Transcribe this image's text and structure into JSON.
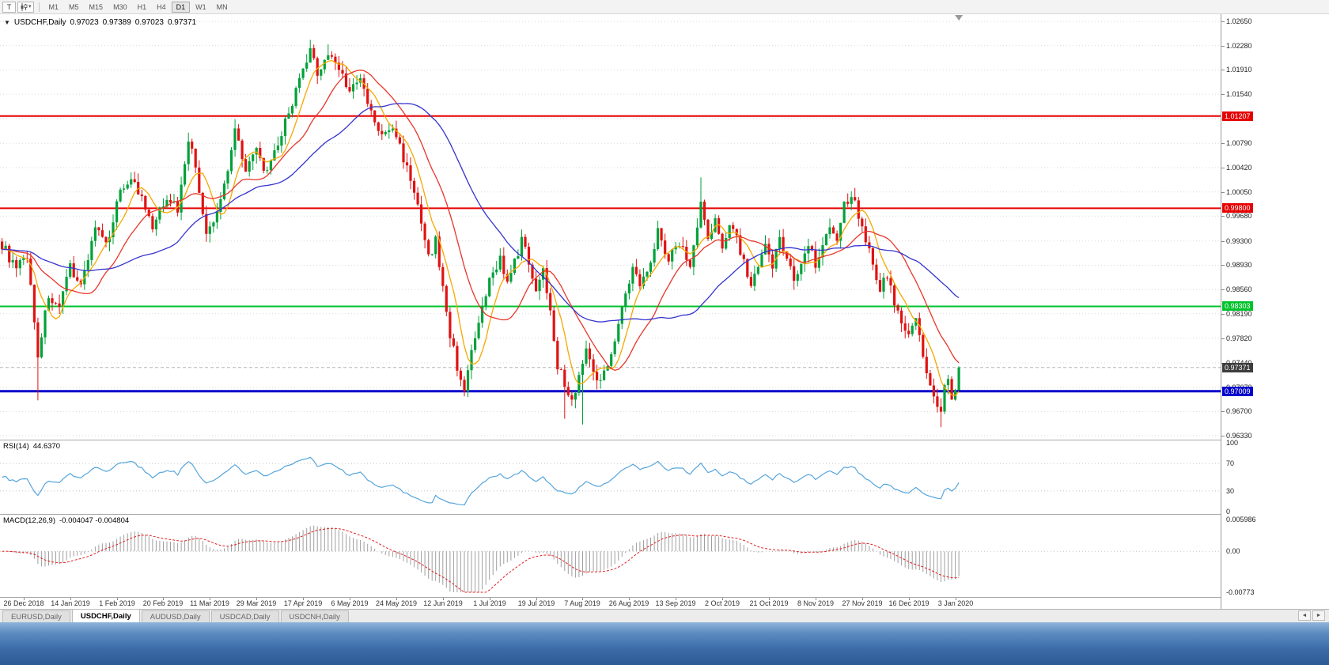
{
  "toolbar": {
    "tool_button_label": "T",
    "chart_type_dropdown_caret": "▾",
    "timeframes": [
      "M1",
      "M5",
      "M15",
      "M30",
      "H1",
      "H4",
      "D1",
      "W1",
      "MN"
    ],
    "active_timeframe": "D1"
  },
  "chart_header": {
    "collapse_icon": "▼",
    "symbol_period": "USDCHF,Daily",
    "open": "0.97023",
    "high": "0.97389",
    "low": "0.97023",
    "close": "0.97371"
  },
  "tabs": {
    "items": [
      "EURUSD,Daily",
      "USDCHF,Daily",
      "AUDUSD,Daily",
      "USDCAD,Daily",
      "USDCNH,Daily"
    ],
    "active": "USDCHF,Daily",
    "scroll_left": "◄",
    "scroll_right": "►"
  },
  "chart_data": {
    "type": "candlestick",
    "symbol": "USDCHF",
    "period": "Daily",
    "ohlc_display": {
      "open": "0.97023",
      "high": "0.97389",
      "low": "0.97023",
      "close": "0.97371"
    },
    "price_axis": {
      "view_max": 1.0276,
      "view_min": 0.9627,
      "ticks": [
        "1.02650",
        "1.02280",
        "1.01910",
        "1.01540",
        "1.01170",
        "1.00790",
        "1.00420",
        "1.00050",
        "0.99680",
        "0.99300",
        "0.98930",
        "0.98560",
        "0.98190",
        "0.97820",
        "0.97440",
        "0.97070",
        "0.96700",
        "0.96330"
      ]
    },
    "date_labels": [
      "26 Dec 2018",
      "14 Jan 2019",
      "1 Feb 2019",
      "20 Feb 2019",
      "11 Mar 2019",
      "29 Mar 2019",
      "17 Apr 2019",
      "6 May 2019",
      "24 May 2019",
      "12 Jun 2019",
      "1 Jul 2019",
      "19 Jul 2019",
      "7 Aug 2019",
      "26 Aug 2019",
      "13 Sep 2019",
      "2 Oct 2019",
      "21 Oct 2019",
      "8 Nov 2019",
      "27 Nov 2019",
      "16 Dec 2019",
      "3 Jan 2020"
    ],
    "label_first_bar_index": 6,
    "label_bar_step": 13,
    "total_bars": 268,
    "bar_spacing": 4.53,
    "colors": {
      "up": "#00a13a",
      "down": "#e01212",
      "grid": "#d9d9d9",
      "ma_fast": "#f5a800",
      "ma_mid": "#e8362a",
      "ma_slow": "#3434cf",
      "rsi": "#56a5dc",
      "macd_hist": "#9e9e9e",
      "macd_signal": "#e02020",
      "current_badge": "#3d3d3d"
    },
    "hlines": [
      {
        "value": 1.01207,
        "label": "1.01207",
        "color": "#e60000",
        "width": 2,
        "name": "resistance-line-upper"
      },
      {
        "value": 0.998,
        "label": "0.99800",
        "color": "#e60000",
        "width": 2,
        "name": "resistance-line-lower"
      },
      {
        "value": 0.98303,
        "label": "0.98303",
        "color": "#00c32b",
        "width": 2,
        "name": "support-line-green"
      },
      {
        "value": 0.97009,
        "label": "0.97009",
        "color": "#0000cc",
        "width": 3,
        "name": "support-line-blue"
      }
    ],
    "current_price": {
      "value": 0.97371,
      "label": "0.97371"
    },
    "last_candle": {
      "open": 0.97023,
      "high": 0.97389,
      "low": 0.97023,
      "close": 0.97371
    },
    "close_anchors": [
      [
        0,
        0.9925
      ],
      [
        4,
        0.9885
      ],
      [
        7,
        0.991
      ],
      [
        10,
        0.9757
      ],
      [
        13,
        0.9848
      ],
      [
        16,
        0.9822
      ],
      [
        19,
        0.9893
      ],
      [
        22,
        0.9862
      ],
      [
        26,
        0.9952
      ],
      [
        29,
        0.9921
      ],
      [
        33,
        1.0008
      ],
      [
        36,
        1.0028
      ],
      [
        39,
        0.9992
      ],
      [
        42,
        0.9948
      ],
      [
        46,
        1.0
      ],
      [
        49,
        0.9978
      ],
      [
        52,
        1.0088
      ],
      [
        54,
        1.0042
      ],
      [
        57,
        0.9936
      ],
      [
        60,
        0.9972
      ],
      [
        63,
        1.0042
      ],
      [
        65,
        1.0102
      ],
      [
        68,
        1.0042
      ],
      [
        71,
        1.0066
      ],
      [
        74,
        1.0032
      ],
      [
        77,
        1.0076
      ],
      [
        80,
        1.0128
      ],
      [
        83,
        1.0173
      ],
      [
        86,
        1.0218
      ],
      [
        88,
        1.0188
      ],
      [
        91,
        1.0214
      ],
      [
        94,
        1.0196
      ],
      [
        97,
        1.0158
      ],
      [
        100,
        1.0176
      ],
      [
        103,
        1.0124
      ],
      [
        106,
        1.0088
      ],
      [
        109,
        1.0104
      ],
      [
        112,
        1.0058
      ],
      [
        115,
        1.0008
      ],
      [
        117,
        0.9952
      ],
      [
        119,
        0.9904
      ],
      [
        121,
        0.993
      ],
      [
        123,
        0.9858
      ],
      [
        125,
        0.9788
      ],
      [
        127,
        0.9738
      ],
      [
        129,
        0.9706
      ],
      [
        131,
        0.9756
      ],
      [
        133,
        0.9802
      ],
      [
        136,
        0.9868
      ],
      [
        139,
        0.9906
      ],
      [
        141,
        0.9862
      ],
      [
        143,
        0.9896
      ],
      [
        145,
        0.9932
      ],
      [
        147,
        0.9898
      ],
      [
        149,
        0.9858
      ],
      [
        151,
        0.9884
      ],
      [
        153,
        0.9828
      ],
      [
        155,
        0.9742
      ],
      [
        157,
        0.9712
      ],
      [
        159,
        0.9684
      ],
      [
        161,
        0.9726
      ],
      [
        163,
        0.9762
      ],
      [
        165,
        0.9738
      ],
      [
        167,
        0.9712
      ],
      [
        170,
        0.9762
      ],
      [
        173,
        0.9826
      ],
      [
        176,
        0.9888
      ],
      [
        178,
        0.9862
      ],
      [
        181,
        0.9904
      ],
      [
        183,
        0.9946
      ],
      [
        186,
        0.9902
      ],
      [
        189,
        0.993
      ],
      [
        192,
        0.9892
      ],
      [
        195,
        0.9988
      ],
      [
        197,
        0.9932
      ],
      [
        199,
        0.9958
      ],
      [
        201,
        0.9922
      ],
      [
        203,
        0.9962
      ],
      [
        205,
        0.9936
      ],
      [
        207,
        0.9896
      ],
      [
        209,
        0.9862
      ],
      [
        211,
        0.9886
      ],
      [
        213,
        0.992
      ],
      [
        215,
        0.9892
      ],
      [
        217,
        0.9938
      ],
      [
        219,
        0.9906
      ],
      [
        221,
        0.9868
      ],
      [
        223,
        0.9896
      ],
      [
        225,
        0.993
      ],
      [
        227,
        0.9896
      ],
      [
        229,
        0.9924
      ],
      [
        231,
        0.9958
      ],
      [
        233,
        0.9932
      ],
      [
        235,
        0.9984
      ],
      [
        237,
        1.0002
      ],
      [
        239,
        0.9972
      ],
      [
        241,
        0.9936
      ],
      [
        243,
        0.9892
      ],
      [
        245,
        0.9856
      ],
      [
        247,
        0.988
      ],
      [
        249,
        0.9836
      ],
      [
        251,
        0.9802
      ],
      [
        253,
        0.9792
      ],
      [
        255,
        0.9812
      ],
      [
        257,
        0.9752
      ],
      [
        259,
        0.9706
      ],
      [
        261,
        0.9676
      ],
      [
        262,
        0.9662
      ],
      [
        263,
        0.9712
      ],
      [
        264,
        0.9722
      ],
      [
        265,
        0.9688
      ],
      [
        266,
        0.9702
      ],
      [
        267,
        0.9737
      ]
    ],
    "wick_lows": [
      [
        10,
        0.9687
      ],
      [
        129,
        0.9693
      ],
      [
        157,
        0.9659
      ],
      [
        162,
        0.965
      ],
      [
        262,
        0.9646
      ]
    ],
    "wick_highs": [
      [
        86,
        1.0237
      ],
      [
        91,
        1.023
      ],
      [
        195,
        1.0027
      ]
    ],
    "moving_averages": [
      {
        "period": 7,
        "color_key": "ma_fast"
      },
      {
        "period": 18,
        "color_key": "ma_mid"
      },
      {
        "period": 40,
        "color_key": "ma_slow"
      }
    ],
    "rsi": {
      "name": "RSI(14)",
      "value": "44.6370",
      "period": 14,
      "levels": [
        "100",
        "70",
        "30",
        "0"
      ],
      "dotted_levels": [
        70,
        30
      ]
    },
    "macd": {
      "name": "MACD(12,26,9)",
      "values": "-0.004047 -0.004804",
      "fast": 12,
      "slow": 26,
      "signal": 9,
      "scale_max": 0.005986,
      "scale_min": -0.00773,
      "axis_labels": [
        "0.005986",
        "0.00",
        "-0.00773"
      ]
    }
  }
}
